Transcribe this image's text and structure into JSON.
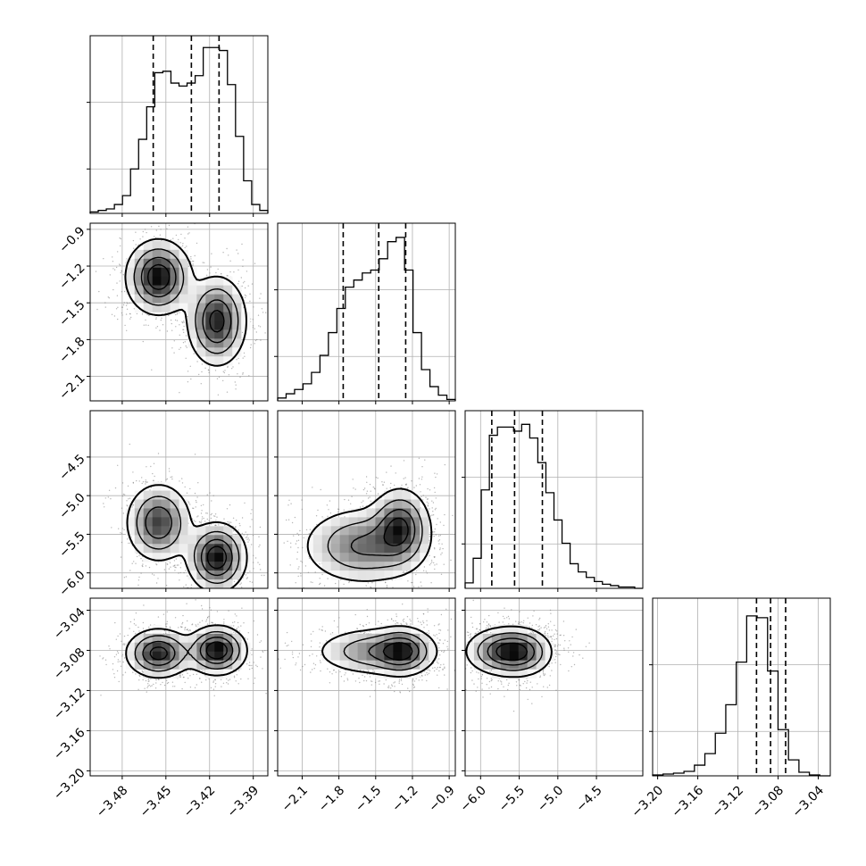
{
  "chart_data": {
    "type": "corner-plot",
    "grid": true,
    "parameters": [
      {
        "range": [
          -3.502,
          -3.38
        ],
        "ticks": [
          -3.48,
          -3.45,
          -3.42,
          -3.39
        ],
        "tick_labels": [
          "−3.48",
          "−3.45",
          "−3.42",
          "−3.39"
        ],
        "quantiles": [
          -3.4587,
          -3.4325,
          -3.4135
        ],
        "histogram": [
          1,
          2,
          3,
          6,
          12,
          30,
          50,
          72,
          95,
          96,
          88,
          86,
          88,
          93,
          112,
          112,
          110,
          87,
          52,
          22,
          6,
          2
        ],
        "ylim": [
          0,
          120
        ]
      },
      {
        "range": [
          -2.3,
          -0.85
        ],
        "ticks": [
          -2.1,
          -1.8,
          -1.5,
          -1.2,
          -0.9
        ],
        "tick_labels": [
          "−2.1",
          "−1.8",
          "−1.5",
          "−1.2",
          "−0.9"
        ],
        "quantiles": [
          -1.765,
          -1.475,
          -1.255
        ],
        "histogram": [
          2,
          5,
          8,
          12,
          20,
          32,
          48,
          65,
          80,
          85,
          90,
          92,
          100,
          112,
          115,
          92,
          48,
          22,
          10,
          4,
          1
        ],
        "ylim": [
          0,
          125
        ]
      },
      {
        "range": [
          -6.2,
          -3.9
        ],
        "ticks": [
          -6.0,
          -5.5,
          -5.0,
          -4.5
        ],
        "tick_labels": [
          "−6.0",
          "−5.5",
          "−5.0",
          "−4.5"
        ],
        "quantiles": [
          -5.855,
          -5.56,
          -5.2
        ],
        "histogram": [
          4,
          22,
          72,
          112,
          118,
          118,
          115,
          120,
          110,
          92,
          70,
          50,
          33,
          18,
          12,
          8,
          5,
          3,
          2,
          1,
          1,
          0
        ],
        "ylim": [
          0,
          130
        ]
      },
      {
        "range": [
          -3.205,
          -3.028
        ],
        "ticks": [
          -3.2,
          -3.16,
          -3.12,
          -3.08,
          -3.04
        ],
        "tick_labels": [
          "−3.20",
          "−3.16",
          "−3.12",
          "−3.08",
          "−3.04"
        ],
        "quantiles": [
          -3.1015,
          -3.0875,
          -3.0725
        ],
        "histogram": [
          1,
          2,
          3,
          5,
          12,
          25,
          48,
          80,
          128,
          180,
          178,
          118,
          52,
          18,
          4,
          1,
          0
        ],
        "ylim": [
          0,
          200
        ]
      }
    ],
    "density_modes": {
      "p2_vs_p1": [
        {
          "x": -3.455,
          "y": -1.29,
          "sx": 0.011,
          "sy": 0.15,
          "w": 1.0
        },
        {
          "x": -3.415,
          "y": -1.65,
          "sx": 0.01,
          "sy": 0.18,
          "w": 0.9
        }
      ],
      "p3_vs_p1": [
        {
          "x": -3.455,
          "y": -5.35,
          "sx": 0.011,
          "sy": 0.25,
          "w": 0.8
        },
        {
          "x": -3.415,
          "y": -5.8,
          "sx": 0.01,
          "sy": 0.22,
          "w": 1.0
        }
      ],
      "p3_vs_p2": [
        {
          "x": -1.6,
          "y": -5.65,
          "sx": 0.25,
          "sy": 0.25,
          "w": 0.8
        },
        {
          "x": -1.3,
          "y": -5.4,
          "sx": 0.12,
          "sy": 0.25,
          "w": 1.0
        }
      ],
      "p4_vs_p1": [
        {
          "x": -3.455,
          "y": -3.083,
          "sx": 0.011,
          "sy": 0.012,
          "w": 0.9
        },
        {
          "x": -3.415,
          "y": -3.08,
          "sx": 0.01,
          "sy": 0.012,
          "w": 1.0
        }
      ],
      "p4_vs_p2": [
        {
          "x": -1.5,
          "y": -3.081,
          "sx": 0.25,
          "sy": 0.012,
          "w": 0.8
        },
        {
          "x": -1.28,
          "y": -3.081,
          "sx": 0.12,
          "sy": 0.012,
          "w": 1.0
        }
      ],
      "p4_vs_p3": [
        {
          "x": -5.7,
          "y": -3.081,
          "sx": 0.25,
          "sy": 0.012,
          "w": 1.0
        },
        {
          "x": -5.45,
          "y": -3.082,
          "sx": 0.2,
          "sy": 0.012,
          "w": 0.6
        }
      ]
    }
  }
}
